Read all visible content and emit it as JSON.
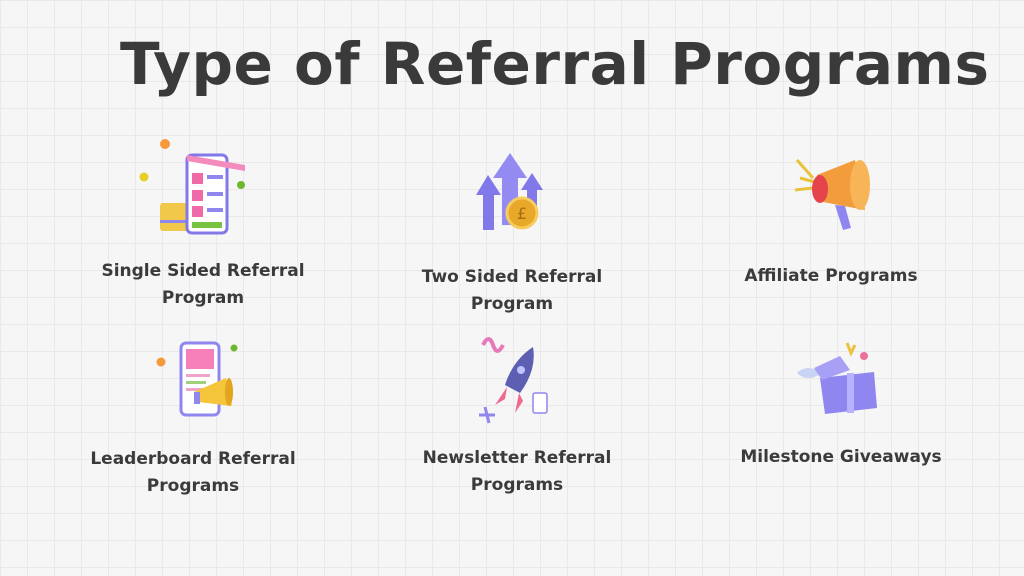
{
  "title": "Type of Referral Programs",
  "items": [
    {
      "label": "Single Sided Referral Program",
      "icon": "shop-phone-card-icon"
    },
    {
      "label": "Two Sided Referral Program",
      "icon": "arrows-coin-icon"
    },
    {
      "label": "Affiliate Programs",
      "icon": "megaphone-icon"
    },
    {
      "label": "Leaderboard Referral Programs",
      "icon": "phone-megaphone-icon"
    },
    {
      "label": "Newsletter Referral Programs",
      "icon": "rocket-icon"
    },
    {
      "label": "Milestone Giveaways",
      "icon": "gift-box-icon"
    }
  ],
  "colors": {
    "purple": "#8f86f0",
    "pink": "#f07ab0",
    "gold": "#f2b233",
    "green": "#79c33a",
    "orange": "#f59a3a"
  }
}
